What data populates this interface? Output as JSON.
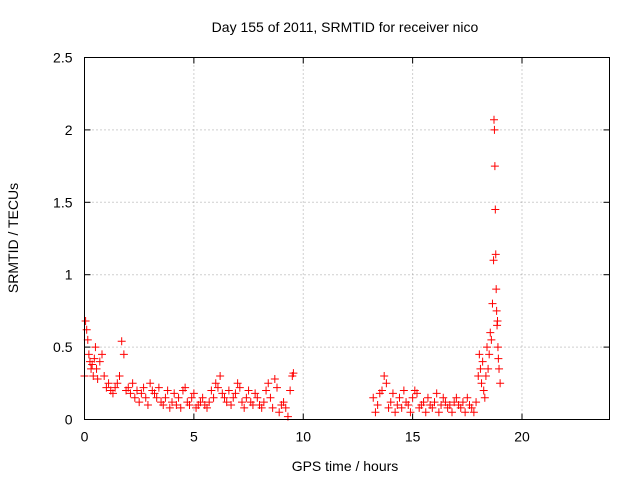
{
  "chart_data": {
    "type": "scatter",
    "title": "Day 155 of 2011, SRMTID for receiver nico",
    "xlabel": "GPS time / hours",
    "ylabel": "SRMTID / TECUs",
    "xlim": [
      0,
      24
    ],
    "ylim": [
      0,
      2.5
    ],
    "xticks": [
      0,
      5,
      10,
      15,
      20
    ],
    "xtick_labels": [
      "0",
      "5",
      "10",
      "15",
      "20"
    ],
    "yticks": [
      0,
      0.5,
      1,
      1.5,
      2,
      2.5
    ],
    "ytick_labels": [
      "0",
      "0.5",
      "1",
      "1.5",
      "2",
      "2.5"
    ],
    "grid": true,
    "marker": "+",
    "color": "#ff0000",
    "series": [
      {
        "x": [
          0.0,
          0.05,
          0.1,
          0.15,
          0.2,
          0.25,
          0.3,
          0.35,
          0.4,
          0.45,
          0.5,
          0.55,
          0.6,
          0.7,
          0.8,
          0.9,
          1.0,
          1.1,
          1.2,
          1.3,
          1.4,
          1.5,
          1.6,
          1.7,
          1.8,
          1.9,
          2.0,
          2.1,
          2.2,
          2.3,
          2.4,
          2.5,
          2.6,
          2.7,
          2.8,
          2.9,
          3.0,
          3.1,
          3.2,
          3.3,
          3.4,
          3.5,
          3.6,
          3.7,
          3.8,
          3.9,
          4.0,
          4.1,
          4.2,
          4.3,
          4.4,
          4.5,
          4.6,
          4.7,
          4.8,
          4.9,
          5.0,
          5.1,
          5.2,
          5.3,
          5.4,
          5.5,
          5.6,
          5.7,
          5.8,
          5.9,
          6.0,
          6.1,
          6.2,
          6.3,
          6.4,
          6.5,
          6.6,
          6.7,
          6.8,
          6.9,
          7.0,
          7.1,
          7.2,
          7.3,
          7.4,
          7.5,
          7.6,
          7.7,
          7.8,
          7.9,
          8.0,
          8.1,
          8.2,
          8.3,
          8.4,
          8.5,
          8.6,
          8.7,
          8.8,
          8.9,
          9.0,
          9.1,
          9.2,
          9.3,
          9.4,
          9.5,
          9.55
        ],
        "y": [
          0.3,
          0.68,
          0.62,
          0.55,
          0.45,
          0.4,
          0.35,
          0.38,
          0.3,
          0.42,
          0.5,
          0.35,
          0.28,
          0.4,
          0.45,
          0.3,
          0.22,
          0.25,
          0.2,
          0.18,
          0.22,
          0.25,
          0.3,
          0.54,
          0.45,
          0.2,
          0.22,
          0.18,
          0.25,
          0.15,
          0.2,
          0.12,
          0.18,
          0.22,
          0.15,
          0.1,
          0.25,
          0.2,
          0.18,
          0.15,
          0.22,
          0.12,
          0.1,
          0.15,
          0.2,
          0.08,
          0.12,
          0.18,
          0.1,
          0.15,
          0.08,
          0.2,
          0.22,
          0.12,
          0.1,
          0.15,
          0.18,
          0.08,
          0.1,
          0.12,
          0.15,
          0.1,
          0.08,
          0.12,
          0.2,
          0.15,
          0.25,
          0.22,
          0.3,
          0.18,
          0.15,
          0.12,
          0.2,
          0.1,
          0.15,
          0.18,
          0.25,
          0.22,
          0.12,
          0.08,
          0.15,
          0.2,
          0.12,
          0.1,
          0.18,
          0.15,
          0.1,
          0.08,
          0.12,
          0.2,
          0.25,
          0.15,
          0.08,
          0.28,
          0.22,
          0.05,
          0.1,
          0.12,
          0.08,
          0.02,
          0.2,
          0.3,
          0.32
        ]
      },
      {
        "x": [
          13.2,
          13.3,
          13.4,
          13.5,
          13.6,
          13.7,
          13.8,
          13.9,
          14.0,
          14.1,
          14.2,
          14.3,
          14.4,
          14.5,
          14.6,
          14.7,
          14.8,
          14.9,
          15.0,
          15.1,
          15.2,
          15.3,
          15.4,
          15.5,
          15.6,
          15.7,
          15.8,
          15.9,
          16.0,
          16.1,
          16.2,
          16.3,
          16.4,
          16.5,
          16.6,
          16.7,
          16.8,
          16.9,
          17.0,
          17.1,
          17.2,
          17.3,
          17.4,
          17.5,
          17.6,
          17.7,
          17.8,
          17.9,
          18.0,
          18.05,
          18.1,
          18.15,
          18.2,
          18.25,
          18.3,
          18.35,
          18.4,
          18.45,
          18.5,
          18.55,
          18.6,
          18.65,
          18.7,
          18.72,
          18.74,
          18.76,
          18.78,
          18.8,
          18.82,
          18.84,
          18.86,
          18.88,
          18.9,
          18.92,
          18.95,
          19.0
        ],
        "y": [
          0.15,
          0.05,
          0.1,
          0.18,
          0.2,
          0.3,
          0.25,
          0.08,
          0.12,
          0.18,
          0.05,
          0.1,
          0.15,
          0.08,
          0.2,
          0.12,
          0.1,
          0.05,
          0.15,
          0.2,
          0.18,
          0.08,
          0.1,
          0.12,
          0.05,
          0.15,
          0.1,
          0.08,
          0.12,
          0.18,
          0.05,
          0.1,
          0.15,
          0.12,
          0.08,
          0.1,
          0.05,
          0.12,
          0.15,
          0.1,
          0.08,
          0.12,
          0.05,
          0.15,
          0.1,
          0.08,
          0.05,
          0.12,
          0.3,
          0.45,
          0.35,
          0.25,
          0.4,
          0.2,
          0.15,
          0.3,
          0.5,
          0.35,
          0.45,
          0.6,
          0.55,
          0.8,
          1.1,
          2.07,
          2.0,
          1.75,
          1.45,
          1.14,
          0.9,
          0.75,
          0.65,
          0.68,
          0.5,
          0.42,
          0.35,
          0.25
        ]
      }
    ]
  }
}
